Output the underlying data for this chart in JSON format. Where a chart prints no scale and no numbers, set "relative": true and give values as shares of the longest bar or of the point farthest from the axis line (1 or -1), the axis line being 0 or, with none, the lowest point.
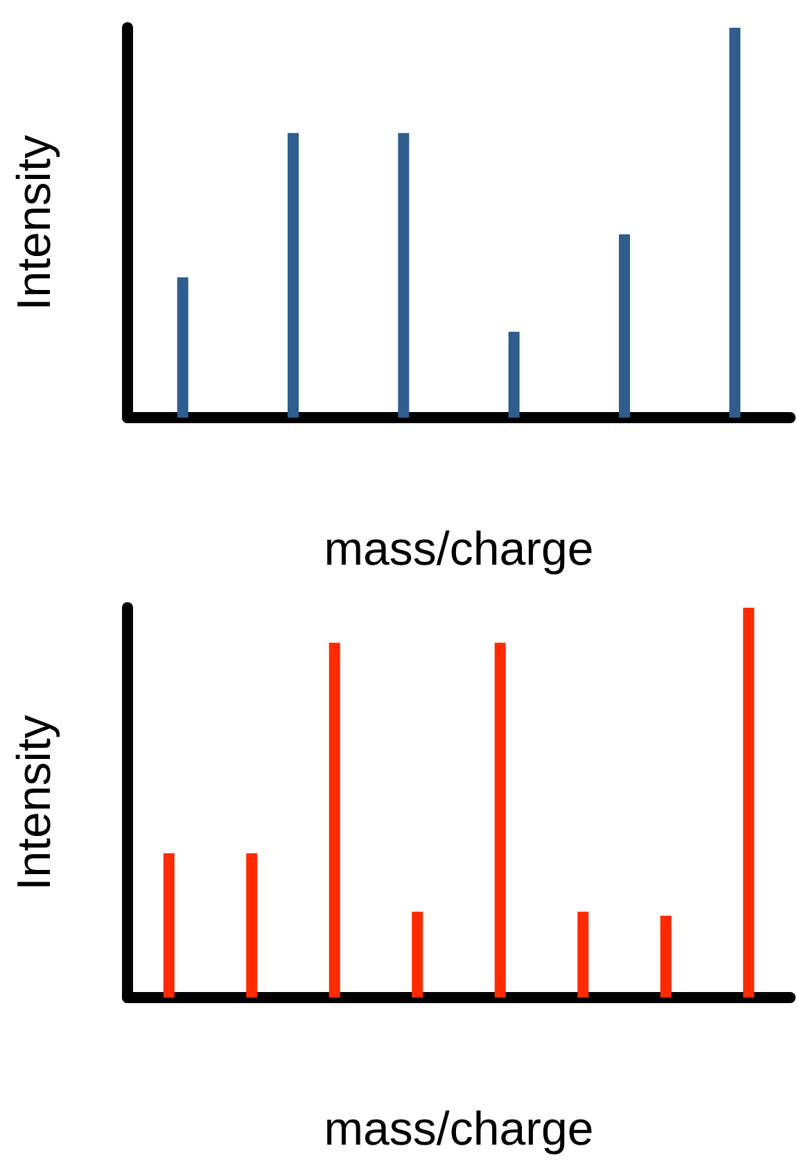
{
  "chart_data": [
    {
      "type": "bar",
      "relative": true,
      "xlabel": "mass/charge",
      "ylabel": "Intensity",
      "categories": [
        null,
        null,
        null,
        null,
        null,
        null
      ],
      "series": [
        {
          "color": "#2e5d8e",
          "values": [
            0.36,
            0.73,
            0.73,
            0.22,
            0.47,
            1
          ]
        }
      ]
    },
    {
      "type": "bar",
      "relative": true,
      "xlabel": "mass/charge",
      "ylabel": "Intensity",
      "categories": [
        null,
        null,
        null,
        null,
        null,
        null,
        null,
        null
      ],
      "series": [
        {
          "color": "#ff2a00",
          "values": [
            0.37,
            0.37,
            0.91,
            0.22,
            0.91,
            0.22,
            0.21,
            1
          ]
        }
      ]
    }
  ]
}
